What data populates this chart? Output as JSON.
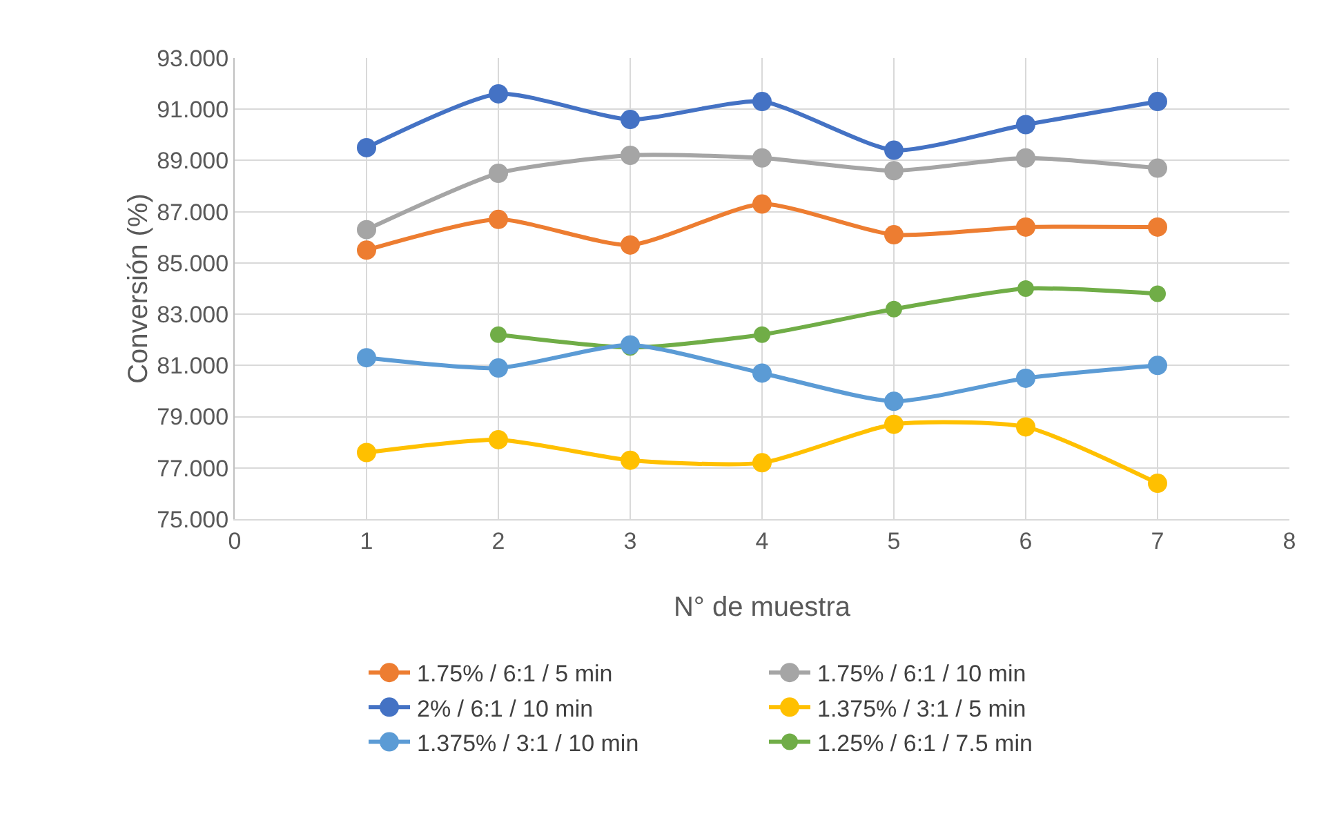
{
  "chart_data": {
    "type": "line",
    "xlabel": "N° de muestra",
    "ylabel": "Conversión (%)",
    "x": [
      1,
      2,
      3,
      4,
      5,
      6,
      7
    ],
    "series": [
      {
        "name": "1.75% / 6:1 / 5 min",
        "color": "#ed7d31",
        "values": [
          85.5,
          86.7,
          85.7,
          87.3,
          86.1,
          86.4,
          86.4
        ]
      },
      {
        "name": "1.75% / 6:1 / 10 min",
        "color": "#a5a5a5",
        "values": [
          86.3,
          88.5,
          89.2,
          89.1,
          88.6,
          89.1,
          88.7
        ]
      },
      {
        "name": "2% / 6:1 / 10 min",
        "color": "#4472c4",
        "values": [
          89.5,
          91.6,
          90.6,
          91.3,
          89.4,
          90.4,
          91.3
        ]
      },
      {
        "name": "1.375% / 3:1 / 5 min",
        "color": "#ffc000",
        "values": [
          77.6,
          78.1,
          77.3,
          77.2,
          78.7,
          78.6,
          76.4
        ]
      },
      {
        "name": "1.375% / 3:1 / 10 min",
        "color": "#5b9bd5",
        "values": [
          81.3,
          80.9,
          81.8,
          80.7,
          79.6,
          80.5,
          81.0
        ]
      },
      {
        "name": "1.25% / 6:1 / 7.5 min",
        "color": "#70ad47",
        "values": [
          null,
          82.2,
          81.7,
          82.2,
          83.2,
          84.0,
          83.8
        ]
      }
    ],
    "xlim": [
      0,
      8
    ],
    "xticks": [
      0,
      1,
      2,
      3,
      4,
      5,
      6,
      7,
      8
    ],
    "ylim": [
      75,
      93
    ],
    "yticks": [
      {
        "value": 75,
        "label": "75.000"
      },
      {
        "value": 77,
        "label": "77.000"
      },
      {
        "value": 79,
        "label": "79.000"
      },
      {
        "value": 81,
        "label": "81.000"
      },
      {
        "value": 83,
        "label": "83.000"
      },
      {
        "value": 85,
        "label": "85.000"
      },
      {
        "value": 87,
        "label": "87.000"
      },
      {
        "value": 89,
        "label": "89.000"
      },
      {
        "value": 91,
        "label": "91.000"
      },
      {
        "value": 93,
        "label": "93.000"
      }
    ],
    "grid": true,
    "legend": "bottom",
    "marker": "circle",
    "line_style": "solid"
  }
}
